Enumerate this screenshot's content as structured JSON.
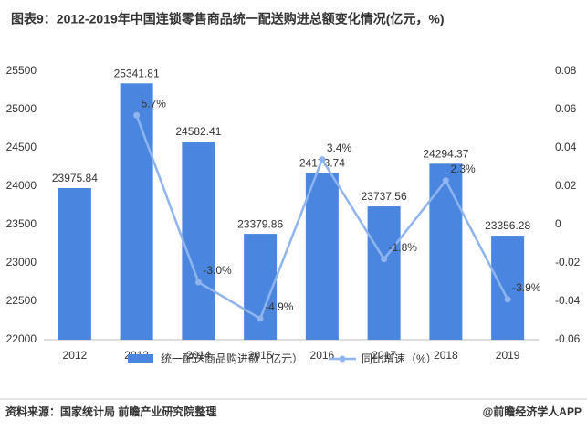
{
  "chart_data": {
    "type": "bar-line",
    "title": "图表9：2012-2019年中国连锁零售商品统一配送购进总额变化情况(亿元，%)",
    "categories": [
      "2012",
      "2013",
      "2014",
      "2015",
      "2016",
      "2017",
      "2018",
      "2019"
    ],
    "series": [
      {
        "name": "统一配送商品购进额（亿元）",
        "color": "#4a86e0",
        "type": "bar",
        "values": [
          23975.84,
          25341.81,
          24582.41,
          23379.86,
          24173.74,
          23737.56,
          24294.37,
          23356.28
        ]
      },
      {
        "name": "同比增速（%）",
        "color": "#8fb4ee",
        "type": "line",
        "axis": "y2",
        "values": [
          null,
          0.057,
          -0.03,
          -0.049,
          0.034,
          -0.018,
          0.023,
          -0.039
        ],
        "value_labels": [
          null,
          "5.7%",
          "-3.0%",
          "-4.9%",
          "3.4%",
          "-1.8%",
          "2.3%",
          "-3.9%"
        ]
      }
    ],
    "ylim": [
      22000,
      25500
    ],
    "yticks": [
      22000,
      22500,
      23000,
      23500,
      24000,
      24500,
      25000,
      25500
    ],
    "y2lim": [
      -0.06,
      0.08
    ],
    "y2ticks": [
      -0.06,
      -0.04,
      -0.02,
      0,
      0.02,
      0.04,
      0.06,
      0.08
    ],
    "legend": "bottom",
    "source": "资料来源：国家统计局 前瞻产业研究院整理",
    "brand": "@前瞻经济学人APP"
  }
}
